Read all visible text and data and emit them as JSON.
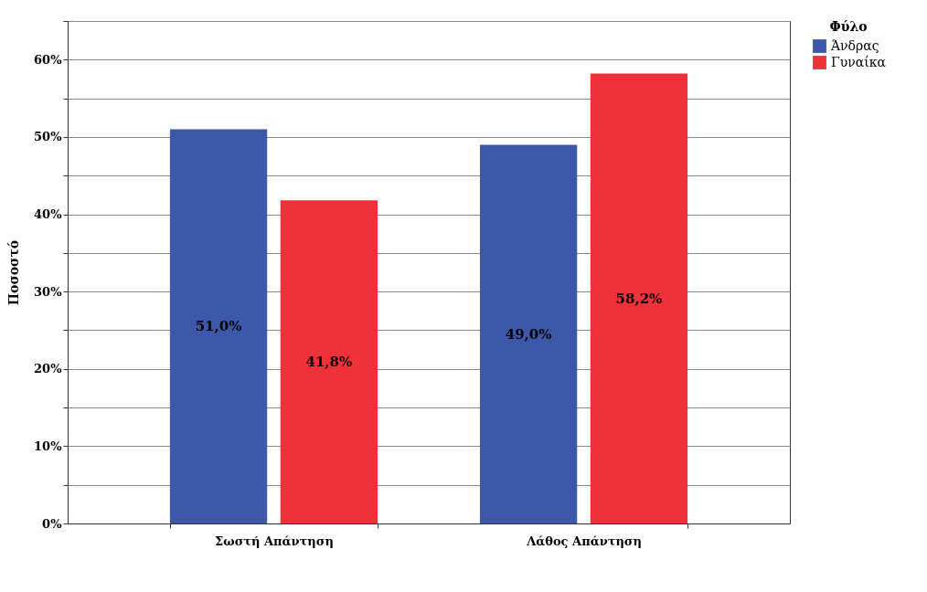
{
  "chart_data": {
    "type": "bar",
    "categories": [
      "Σωστή Απάντηση",
      "Λάθος Απάντηση"
    ],
    "series": [
      {
        "name": "Άνδρας",
        "color": "#3d58a9",
        "values": [
          51.0,
          49.0
        ],
        "value_labels": [
          "51,0%",
          "49,0%"
        ]
      },
      {
        "name": "Γυναίκα",
        "color": "#ef3139",
        "values": [
          41.8,
          58.2
        ],
        "value_labels": [
          "41,8%",
          "58,2%"
        ]
      }
    ],
    "ylabel": "Ποσοστό",
    "legend_title": "Φύλο",
    "legend": "top right",
    "grid": "y",
    "ylim": [
      0,
      65
    ],
    "yticks": [
      {
        "value": 0,
        "label": "0%"
      },
      {
        "value": 5,
        "label": null
      },
      {
        "value": 10,
        "label": "10%"
      },
      {
        "value": 15,
        "label": null
      },
      {
        "value": 20,
        "label": "20%"
      },
      {
        "value": 25,
        "label": null
      },
      {
        "value": 30,
        "label": "30%"
      },
      {
        "value": 35,
        "label": null
      },
      {
        "value": 40,
        "label": "40%"
      },
      {
        "value": 45,
        "label": null
      },
      {
        "value": 50,
        "label": "50%"
      },
      {
        "value": 55,
        "label": null
      },
      {
        "value": 60,
        "label": "60%"
      },
      {
        "value": 65,
        "label": null
      }
    ]
  }
}
